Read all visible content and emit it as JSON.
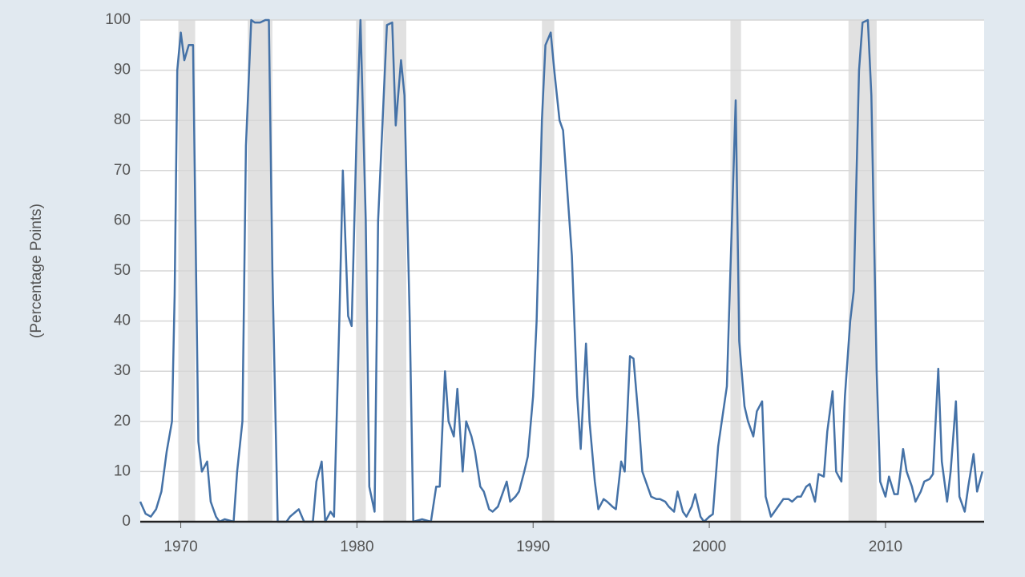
{
  "chart_data": {
    "type": "line",
    "y_label": "(Percentage Points)",
    "xlim": [
      1967.7,
      2015.6
    ],
    "xticks": [
      1970,
      1980,
      1990,
      2000,
      2010
    ],
    "ylim": [
      0,
      100
    ],
    "yticks": [
      0,
      10,
      20,
      30,
      40,
      50,
      60,
      70,
      80,
      90,
      100
    ],
    "grid": true,
    "color": "#4572a7",
    "recession_color": "#e1e1e1",
    "recessions": [
      [
        1969.86,
        1970.82
      ],
      [
        1973.8,
        1975.2
      ],
      [
        1979.95,
        1980.5
      ],
      [
        1981.5,
        1982.8
      ],
      [
        1990.5,
        1991.2
      ],
      [
        2001.2,
        2001.8
      ],
      [
        2007.9,
        2009.5
      ]
    ],
    "x": [
      1967.7,
      1968.0,
      1968.3,
      1968.6,
      1968.9,
      1969.2,
      1969.5,
      1969.65,
      1969.8,
      1970.0,
      1970.2,
      1970.45,
      1970.7,
      1971.0,
      1971.2,
      1971.5,
      1971.7,
      1972.0,
      1972.2,
      1972.5,
      1973.0,
      1973.2,
      1973.5,
      1973.7,
      1974.0,
      1974.2,
      1974.5,
      1974.8,
      1975.0,
      1975.2,
      1975.5,
      1976.0,
      1976.2,
      1976.7,
      1977.0,
      1977.5,
      1977.7,
      1978.0,
      1978.2,
      1978.5,
      1978.7,
      1979.0,
      1979.2,
      1979.5,
      1979.7,
      1980.0,
      1980.2,
      1980.5,
      1980.7,
      1981.0,
      1981.2,
      1981.7,
      1982.0,
      1982.2,
      1982.5,
      1982.7,
      1983.0,
      1983.2,
      1983.7,
      1984.2,
      1984.5,
      1984.7,
      1985.0,
      1985.2,
      1985.5,
      1985.7,
      1986.0,
      1986.2,
      1986.5,
      1986.7,
      1987.0,
      1987.2,
      1987.5,
      1987.7,
      1988.0,
      1988.2,
      1988.5,
      1988.7,
      1989.0,
      1989.2,
      1989.5,
      1989.7,
      1990.0,
      1990.2,
      1990.5,
      1990.7,
      1991.0,
      1991.2,
      1991.5,
      1991.7,
      1992.0,
      1992.2,
      1992.5,
      1992.7,
      1993.0,
      1993.2,
      1993.5,
      1993.7,
      1994.0,
      1994.2,
      1994.5,
      1994.7,
      1995.0,
      1995.2,
      1995.5,
      1995.7,
      1996.0,
      1996.2,
      1996.5,
      1996.7,
      1997.0,
      1997.2,
      1997.5,
      1997.7,
      1998.0,
      1998.2,
      1998.5,
      1998.7,
      1999.0,
      1999.2,
      1999.5,
      1999.7,
      2000.0,
      2000.2,
      2000.5,
      2001.0,
      2001.2,
      2001.5,
      2001.7,
      2002.0,
      2002.2,
      2002.5,
      2002.7,
      2003.0,
      2003.2,
      2003.5,
      2003.7,
      2004.0,
      2004.2,
      2004.5,
      2004.7,
      2005.0,
      2005.2,
      2005.5,
      2005.7,
      2006.0,
      2006.2,
      2006.5,
      2006.7,
      2007.0,
      2007.2,
      2007.5,
      2007.7,
      2008.0,
      2008.2,
      2008.5,
      2008.7,
      2009.0,
      2009.2,
      2009.5,
      2009.7,
      2010.0,
      2010.2,
      2010.5,
      2010.7,
      2011.0,
      2011.2,
      2011.5,
      2011.7,
      2012.0,
      2012.2,
      2012.5,
      2012.7,
      2013.0,
      2013.2,
      2013.5,
      2013.7,
      2014.0,
      2014.2,
      2014.5,
      2014.7,
      2015.0,
      2015.2,
      2015.5
    ],
    "values": [
      4,
      1.6,
      1,
      2.5,
      6,
      14,
      20,
      45,
      90,
      97.5,
      92,
      95,
      95,
      16,
      10,
      12,
      4,
      1,
      0,
      0.5,
      0,
      10,
      20,
      75,
      100,
      99.5,
      99.5,
      100,
      100,
      50,
      0,
      0,
      1,
      2.5,
      0,
      0,
      8,
      12,
      0,
      2,
      1,
      40,
      70,
      41,
      39,
      80,
      100,
      60,
      7,
      2,
      60,
      99,
      99.5,
      79,
      92,
      85,
      40,
      0,
      0.5,
      0,
      7,
      7,
      30,
      20,
      17,
      26.5,
      10,
      20,
      17,
      14,
      7,
      6,
      2.5,
      2,
      3,
      5,
      8,
      4,
      5,
      6,
      10,
      13,
      25,
      40,
      80,
      95,
      97.5,
      90,
      80,
      78,
      63,
      53,
      25,
      14.5,
      35.5,
      20,
      8,
      2.5,
      4.5,
      4,
      3,
      2.5,
      12,
      10,
      33,
      32.5,
      20,
      10,
      7,
      5,
      4.5,
      4.5,
      4,
      3,
      2,
      6,
      2,
      1,
      3,
      5.5,
      1,
      0,
      1,
      1.5,
      15,
      27,
      50,
      84,
      36,
      23,
      20,
      17,
      22,
      24,
      5,
      1,
      2,
      3.5,
      4.5,
      4.5,
      4,
      5,
      5,
      7,
      7.5,
      4,
      9.5,
      9,
      18,
      26,
      10,
      8,
      25,
      40,
      46,
      90,
      99.5,
      100,
      85,
      30,
      8,
      5,
      9,
      5.5,
      5.5,
      14.5,
      10,
      7,
      4,
      6,
      8,
      8.5,
      9.5,
      30.5,
      12,
      4,
      10,
      24,
      5,
      2,
      7,
      13.5,
      6,
      10
    ]
  }
}
